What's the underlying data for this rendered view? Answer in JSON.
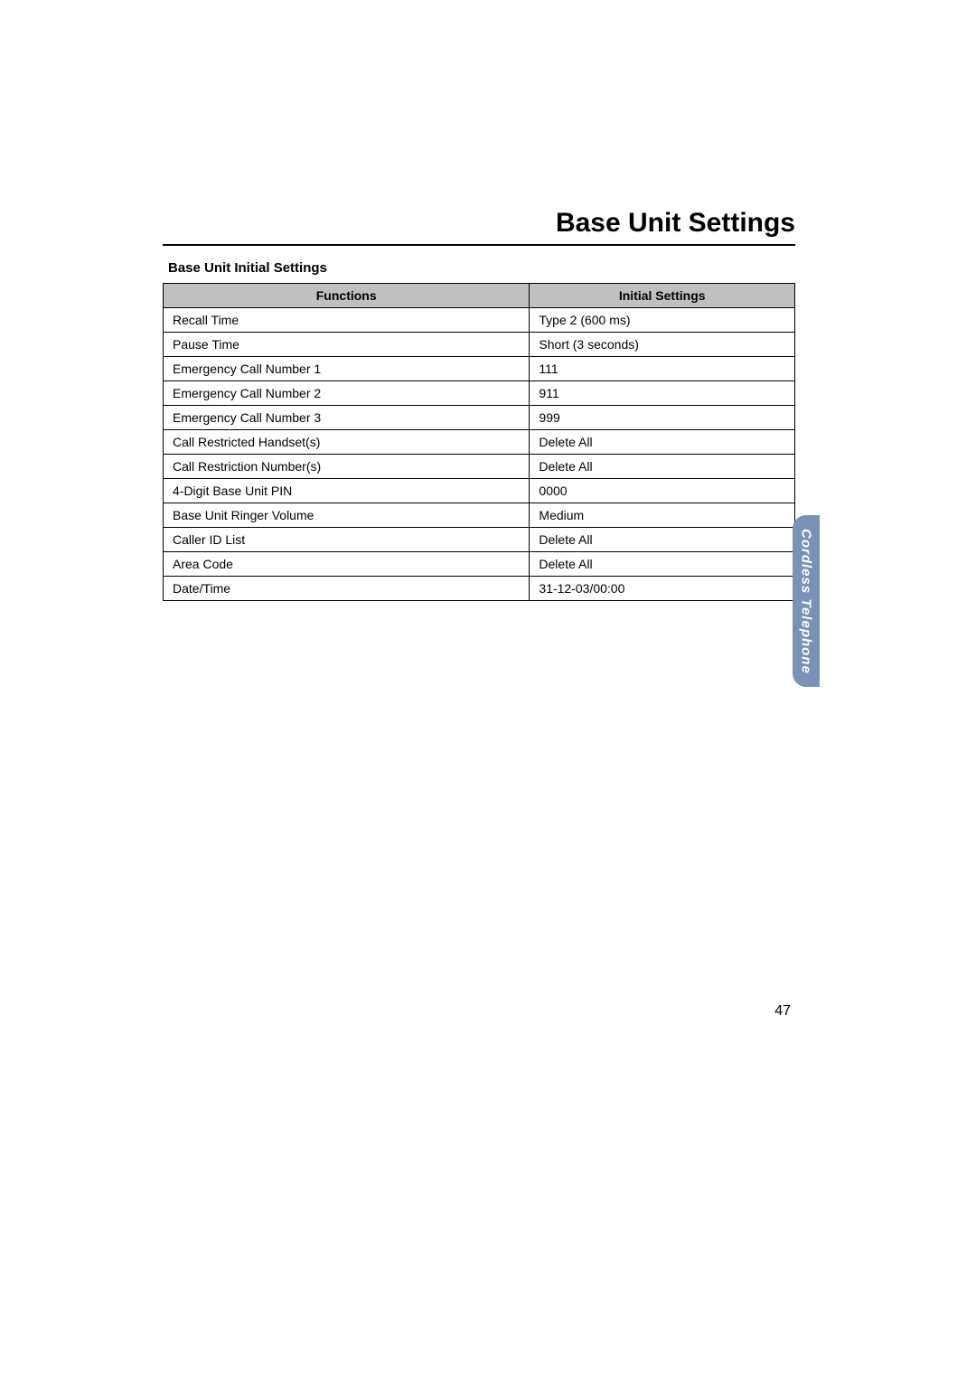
{
  "page": {
    "title": "Base Unit Settings",
    "section_title": "Base Unit Initial Settings",
    "number": "47"
  },
  "side_tab": {
    "label": "Cordless Telephone",
    "bg_color": "#7a92b5",
    "text_color": "#ffffff"
  },
  "table": {
    "header_bg": "#c0c0c0",
    "columns": {
      "functions": "Functions",
      "initial": "Initial Settings"
    },
    "rows": [
      {
        "func": "Recall Time",
        "init": "Type 2 (600 ms)"
      },
      {
        "func": "Pause Time",
        "init": "Short (3 seconds)"
      },
      {
        "func": "Emergency Call Number 1",
        "init": "111"
      },
      {
        "func": "Emergency Call Number 2",
        "init": "911"
      },
      {
        "func": "Emergency Call Number 3",
        "init": "999"
      },
      {
        "func": "Call Restricted Handset(s)",
        "init": "Delete All"
      },
      {
        "func": "Call Restriction Number(s)",
        "init": "Delete All"
      },
      {
        "func": "4-Digit Base Unit PIN",
        "init": "0000"
      },
      {
        "func": "Base Unit Ringer Volume",
        "init": "Medium"
      },
      {
        "func": "Caller ID List",
        "init": "Delete All"
      },
      {
        "func": "Area Code",
        "init": "Delete All"
      },
      {
        "func": "Date/Time",
        "init": "31-12-03/00:00"
      }
    ]
  }
}
